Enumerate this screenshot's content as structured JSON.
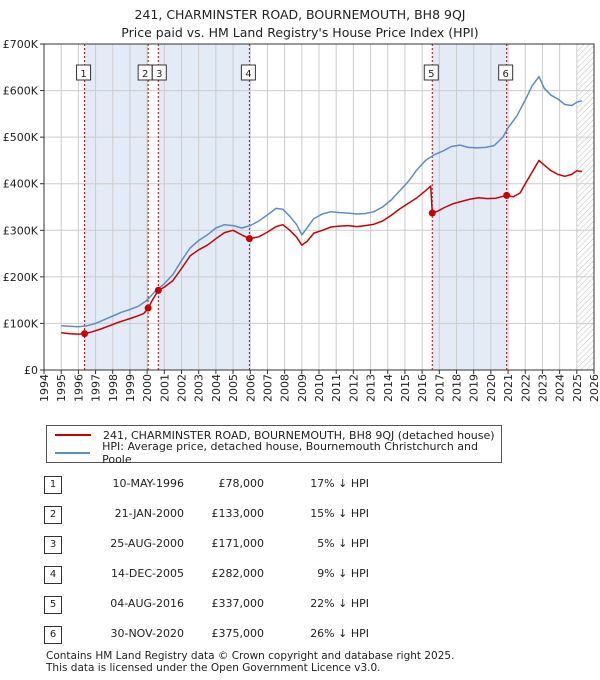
{
  "title_line1": "241, CHARMINSTER ROAD, BOURNEMOUTH, BH8 9QJ",
  "title_line2": "Price paid vs. HM Land Registry's House Price Index (HPI)",
  "colors": {
    "property": "#cc0000",
    "hpi": "#5b8ec8",
    "shade": "#e3ebf7",
    "grid": "#cccccc"
  },
  "chart_data": {
    "type": "line",
    "xlim": [
      1994,
      2026
    ],
    "ylim": [
      0,
      700000
    ],
    "y_ticks": [
      0,
      100000,
      200000,
      300000,
      400000,
      500000,
      600000,
      700000
    ],
    "y_tick_labels": [
      "£0",
      "£100K",
      "£200K",
      "£300K",
      "£400K",
      "£500K",
      "£600K",
      "£700K"
    ],
    "x_ticks": [
      1994,
      1995,
      1996,
      1997,
      1998,
      1999,
      2000,
      2001,
      2002,
      2003,
      2004,
      2005,
      2006,
      2007,
      2008,
      2009,
      2010,
      2011,
      2012,
      2013,
      2014,
      2015,
      2016,
      2017,
      2018,
      2019,
      2020,
      2021,
      2022,
      2023,
      2024,
      2025,
      2026
    ],
    "x_tick_labels": [
      "1994",
      "1995",
      "1996",
      "1997",
      "1998",
      "1999",
      "2000",
      "2001",
      "2002",
      "2003",
      "2004",
      "2005",
      "2006",
      "2007",
      "2008",
      "2009",
      "2010",
      "2011",
      "2012",
      "2013",
      "2014",
      "2015",
      "2016",
      "2017",
      "2018",
      "2019",
      "2020",
      "2021",
      "2022",
      "2023",
      "2024",
      "2025",
      "2026"
    ],
    "shaded_spans": [
      [
        1996.36,
        2000.06
      ],
      [
        2000.65,
        2005.95
      ],
      [
        2016.59,
        2020.92
      ]
    ],
    "hatched_from": 2025.0,
    "series": [
      {
        "name": "241, CHARMINSTER ROAD, BOURNEMOUTH, BH8 9QJ (detached house)",
        "x": [
          1995.0,
          1995.5,
          1996.0,
          1996.36,
          1996.8,
          1997.3,
          1997.8,
          1998.3,
          1998.8,
          1999.3,
          1999.8,
          2000.06,
          2000.3,
          2000.65,
          2001.0,
          2001.5,
          2002.0,
          2002.5,
          2003.0,
          2003.5,
          2004.0,
          2004.5,
          2005.0,
          2005.5,
          2005.95,
          2006.5,
          2007.0,
          2007.5,
          2007.9,
          2008.3,
          2008.7,
          2009.0,
          2009.3,
          2009.7,
          2010.2,
          2010.7,
          2011.2,
          2011.7,
          2012.2,
          2012.7,
          2013.2,
          2013.7,
          2014.2,
          2014.7,
          2015.2,
          2015.7,
          2016.2,
          2016.5,
          2016.59,
          2016.9,
          2017.3,
          2017.8,
          2018.3,
          2018.8,
          2019.3,
          2019.8,
          2020.3,
          2020.7,
          2020.92,
          2021.3,
          2021.7,
          2022.0,
          2022.4,
          2022.8,
          2023.1,
          2023.5,
          2023.9,
          2024.3,
          2024.7,
          2025.0,
          2025.3
        ],
        "values": [
          80000,
          78000,
          77000,
          78000,
          82000,
          88000,
          95000,
          102000,
          108000,
          114000,
          121000,
          133000,
          150000,
          171000,
          178000,
          192000,
          218000,
          245000,
          258000,
          268000,
          282000,
          295000,
          300000,
          290000,
          282000,
          286000,
          296000,
          308000,
          312000,
          300000,
          285000,
          268000,
          276000,
          294000,
          300000,
          307000,
          309000,
          310000,
          308000,
          310000,
          313000,
          320000,
          332000,
          346000,
          358000,
          370000,
          385000,
          395000,
          337000,
          341000,
          349000,
          357000,
          362000,
          367000,
          370000,
          368000,
          369000,
          373000,
          375000,
          372000,
          380000,
          400000,
          425000,
          450000,
          440000,
          428000,
          420000,
          416000,
          420000,
          428000,
          426000
        ]
      },
      {
        "name": "HPI: Average price, detached house, Bournemouth Christchurch and Poole",
        "x": [
          1995.0,
          1995.5,
          1996.0,
          1996.5,
          1997.0,
          1997.5,
          1998.0,
          1998.5,
          1999.0,
          1999.5,
          2000.0,
          2000.5,
          2001.0,
          2001.5,
          2002.0,
          2002.5,
          2003.0,
          2003.5,
          2004.0,
          2004.5,
          2005.0,
          2005.5,
          2006.0,
          2006.5,
          2007.0,
          2007.5,
          2007.9,
          2008.3,
          2008.7,
          2009.0,
          2009.3,
          2009.7,
          2010.2,
          2010.7,
          2011.2,
          2011.7,
          2012.2,
          2012.7,
          2013.2,
          2013.7,
          2014.2,
          2014.7,
          2015.2,
          2015.7,
          2016.2,
          2016.7,
          2017.2,
          2017.7,
          2018.2,
          2018.7,
          2019.2,
          2019.7,
          2020.2,
          2020.7,
          2021.0,
          2021.5,
          2022.0,
          2022.4,
          2022.8,
          2023.1,
          2023.5,
          2023.9,
          2024.3,
          2024.7,
          2025.0,
          2025.3
        ],
        "values": [
          95000,
          94000,
          93000,
          95000,
          100000,
          108000,
          116000,
          124000,
          130000,
          137000,
          150000,
          170000,
          185000,
          205000,
          235000,
          262000,
          278000,
          290000,
          305000,
          312000,
          310000,
          305000,
          310000,
          320000,
          333000,
          347000,
          345000,
          330000,
          312000,
          290000,
          305000,
          325000,
          335000,
          340000,
          338000,
          337000,
          335000,
          336000,
          340000,
          350000,
          365000,
          385000,
          405000,
          430000,
          450000,
          462000,
          470000,
          480000,
          483000,
          478000,
          477000,
          478000,
          482000,
          500000,
          520000,
          545000,
          580000,
          610000,
          630000,
          605000,
          590000,
          582000,
          570000,
          568000,
          575000,
          578000
        ]
      }
    ],
    "sales": [
      {
        "label": "1",
        "x": 1996.36,
        "value": 78000
      },
      {
        "label": "2",
        "x": 2000.06,
        "value": 133000
      },
      {
        "label": "3",
        "x": 2000.65,
        "value": 171000
      },
      {
        "label": "4",
        "x": 2005.95,
        "value": 282000
      },
      {
        "label": "5",
        "x": 2016.59,
        "value": 337000
      },
      {
        "label": "6",
        "x": 2020.92,
        "value": 375000
      }
    ]
  },
  "legend": {
    "property": "241, CHARMINSTER ROAD, BOURNEMOUTH, BH8 9QJ (detached house)",
    "hpi": "HPI: Average price, detached house, Bournemouth Christchurch and Poole"
  },
  "transactions": [
    {
      "num": "1",
      "date": "10-MAY-1996",
      "price": "£78,000",
      "hpi": "17% ↓ HPI"
    },
    {
      "num": "2",
      "date": "21-JAN-2000",
      "price": "£133,000",
      "hpi": "15% ↓ HPI"
    },
    {
      "num": "3",
      "date": "25-AUG-2000",
      "price": "£171,000",
      "hpi": "5% ↓ HPI"
    },
    {
      "num": "4",
      "date": "14-DEC-2005",
      "price": "£282,000",
      "hpi": "9% ↓ HPI"
    },
    {
      "num": "5",
      "date": "04-AUG-2016",
      "price": "£337,000",
      "hpi": "22% ↓ HPI"
    },
    {
      "num": "6",
      "date": "30-NOV-2020",
      "price": "£375,000",
      "hpi": "26% ↓ HPI"
    }
  ],
  "footer_line1": "Contains HM Land Registry data © Crown copyright and database right 2025.",
  "footer_line2": "This data is licensed under the Open Government Licence v3.0."
}
